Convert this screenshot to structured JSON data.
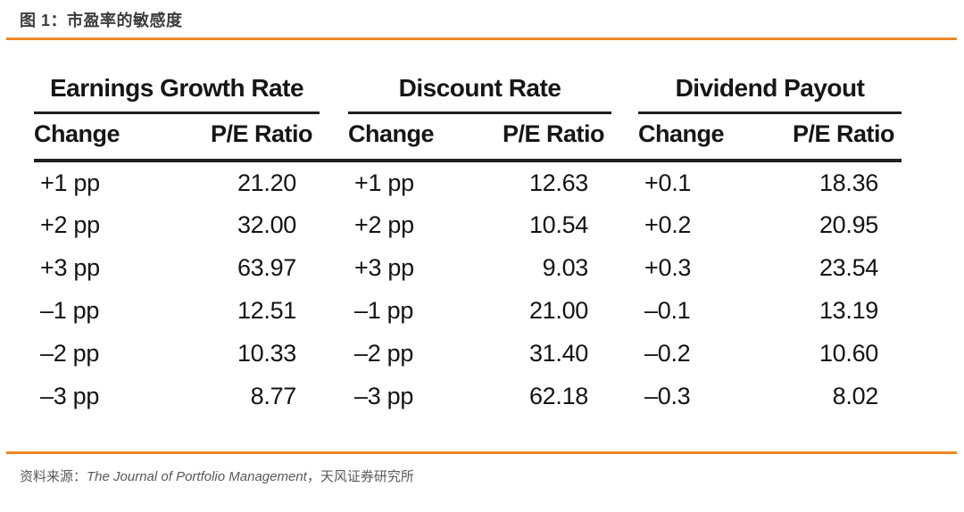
{
  "figure": {
    "title": "图 1：市盈率的敏感度"
  },
  "table": {
    "group_headers": [
      {
        "label": "Earnings Growth Rate"
      },
      {
        "label": "Discount Rate"
      },
      {
        "label": "Dividend Payout"
      }
    ],
    "sub_headers": [
      "Change",
      "P/E Ratio",
      "Change",
      "P/E Ratio",
      "Change",
      "P/E Ratio"
    ],
    "rows": [
      [
        "+1 pp",
        "21.20",
        "+1 pp",
        "12.63",
        "+0.1",
        "18.36"
      ],
      [
        "+2 pp",
        "32.00",
        "+2 pp",
        "10.54",
        "+0.2",
        "20.95"
      ],
      [
        "+3 pp",
        "63.97",
        "+3 pp",
        "9.03",
        "+0.3",
        "23.54"
      ],
      [
        "–1 pp",
        "12.51",
        "–1 pp",
        "21.00",
        "–0.1",
        "13.19"
      ],
      [
        "–2 pp",
        "10.33",
        "–2 pp",
        "31.40",
        "–0.2",
        "10.60"
      ],
      [
        "–3 pp",
        "8.77",
        "–3 pp",
        "62.18",
        "–0.3",
        "8.02"
      ]
    ]
  },
  "source": {
    "prefix": "资料来源：",
    "journal": "The Journal of Portfolio Management",
    "suffix": "，天风证券研究所"
  },
  "colors": {
    "accent_orange": "#ef8220",
    "table_ink": "#1f1f1f",
    "source_gray": "#595959"
  }
}
